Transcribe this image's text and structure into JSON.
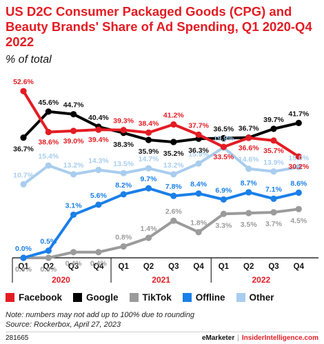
{
  "title": "US D2C Consumer Packaged Goods (CPG) and Beauty Brands' Share of Ad Spending, Q1 2020-Q4 2022",
  "subtitle": "% of total",
  "chart_data": {
    "type": "line",
    "x": [
      "Q1",
      "Q2",
      "Q3",
      "Q4",
      "Q1",
      "Q2",
      "Q3",
      "Q4",
      "Q1",
      "Q2",
      "Q3",
      "Q4"
    ],
    "year_labels": [
      {
        "label": "2020",
        "quarter_index": 1.5
      },
      {
        "label": "2021",
        "quarter_index": 5.5
      },
      {
        "label": "2022",
        "quarter_index": 9.5
      }
    ],
    "unit": "%",
    "series": [
      {
        "name": "Facebook",
        "color": "#e31c23",
        "values": [
          52.6,
          38.6,
          39.0,
          39.4,
          39.3,
          38.4,
          41.2,
          37.7,
          33.5,
          36.6,
          35.7,
          30.2
        ],
        "labels": [
          "52.6%",
          "38.6%",
          "39.0%",
          "39.4%",
          "39.3%",
          "38.4%",
          "41.2%",
          "37.7%",
          "33.5%",
          "36.6%",
          "35.7%",
          "30.2%"
        ]
      },
      {
        "name": "Google",
        "color": "#000000",
        "values": [
          36.7,
          45.6,
          44.7,
          40.4,
          38.3,
          35.9,
          35.2,
          36.3,
          36.5,
          36.7,
          39.7,
          41.7
        ],
        "labels": [
          "36.7%",
          "45.6%",
          "44.7%",
          "40.4%",
          "38.3%",
          "35.9%",
          "35.2%",
          "36.3%",
          "36.5%",
          "36.7%",
          "39.7%",
          "41.7%"
        ]
      },
      {
        "name": "TikTok",
        "color": "#9b9b9b",
        "values": [
          0.0,
          0.0,
          0.4,
          0.4,
          0.8,
          1.4,
          2.6,
          1.8,
          3.3,
          3.5,
          3.7,
          4.5
        ],
        "labels": [
          "0.0%",
          "0.0%",
          "0.4%",
          "0.4%",
          "0.8%",
          "1.4%",
          "2.6%",
          "1.8%",
          "3.3%",
          "3.5%",
          "3.7%",
          "4.5%"
        ]
      },
      {
        "name": "Offline",
        "color": "#1a7fe8",
        "values": [
          0.0,
          0.5,
          3.1,
          5.6,
          8.2,
          9.7,
          7.8,
          8.4,
          6.9,
          8.7,
          7.1,
          8.6
        ],
        "labels": [
          "0.0%",
          "0.5%",
          "3.1%",
          "5.6%",
          "8.2%",
          "9.7%",
          "7.8%",
          "8.4%",
          "6.9%",
          "8.7%",
          "7.1%",
          "8.6%"
        ]
      },
      {
        "name": "Other",
        "color": "#a9cdee",
        "values": [
          10.7,
          15.4,
          13.2,
          14.3,
          13.5,
          14.7,
          13.2,
          15.9,
          19.9,
          14.6,
          13.9,
          15.0
        ],
        "labels": [
          "10.7%",
          "15.4%",
          "13.2%",
          "14.3%",
          "13.5%",
          "14.7%",
          "13.2%",
          "15.9%",
          "19.9%",
          "14.6%",
          "13.9%",
          "15.0%"
        ]
      }
    ]
  },
  "note": "Note: numbers may not add up to 100% due to rounding",
  "source": "Source: Rockerbox, April 27, 2023",
  "chart_id": "281665",
  "brand_left": "eMarketer",
  "brand_sep": "|",
  "brand_right": "InsiderIntelligence.com"
}
